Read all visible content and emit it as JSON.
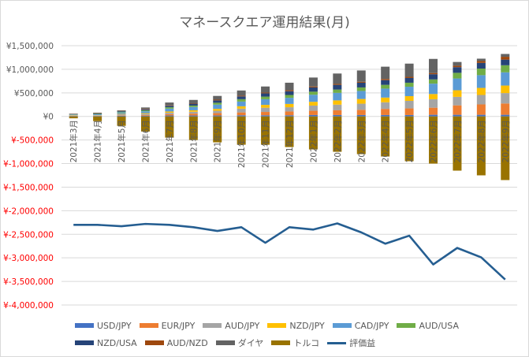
{
  "chart_data": {
    "type": "bar",
    "subtype": "stacked-bar-with-line",
    "title": "マネースクエア運用結果(月)",
    "xlabel": "",
    "ylabel": "",
    "ylim": [
      -4000000,
      1500000
    ],
    "yticks": [
      1500000,
      1000000,
      500000,
      0,
      -500000,
      -1000000,
      -1500000,
      -2000000,
      -2500000,
      -3000000,
      -3500000,
      -4000000
    ],
    "ytick_labels": [
      "¥1,500,000",
      "¥1,000,000",
      "¥500,000",
      "¥0",
      "¥-500,000",
      "¥-1,000,000",
      "¥-1,500,000",
      "¥-2,000,000",
      "¥-2,500,000",
      "¥-3,000,000",
      "¥-3,500,000",
      "¥-4,000,000"
    ],
    "negative_tick_color": "#ff0000",
    "positive_tick_color": "#595959",
    "grid": true,
    "legend_position": "bottom",
    "categories": [
      "2021年3月",
      "2021年4月",
      "2021年5月",
      "2021年6月",
      "2021年7月",
      "2021年8月",
      "2021年9月",
      "2021年10月",
      "2021年11月",
      "2021年12月",
      "2022年1月",
      "2022年2月",
      "2022年3月",
      "2022年4月",
      "2022年5月",
      "2022年6月",
      "2022年7月",
      "2022年8月",
      "2022年9月"
    ],
    "series": [
      {
        "name": "USD/JPY",
        "color": "#4472c4",
        "values": [
          10000,
          10000,
          15000,
          15000,
          20000,
          20000,
          20000,
          25000,
          25000,
          25000,
          30000,
          30000,
          30000,
          30000,
          30000,
          35000,
          35000,
          35000,
          35000
        ]
      },
      {
        "name": "EUR/JPY",
        "color": "#ed7d31",
        "values": [
          5000,
          5000,
          10000,
          15000,
          30000,
          40000,
          50000,
          60000,
          70000,
          80000,
          90000,
          100000,
          110000,
          130000,
          140000,
          150000,
          200000,
          220000,
          240000
        ]
      },
      {
        "name": "AUD/JPY",
        "color": "#a5a5a5",
        "values": [
          10000,
          10000,
          20000,
          25000,
          30000,
          40000,
          50000,
          80000,
          90000,
          90000,
          110000,
          120000,
          130000,
          140000,
          160000,
          180000,
          180000,
          200000,
          220000
        ]
      },
      {
        "name": "NZD/JPY",
        "color": "#ffc000",
        "values": [
          5000,
          5000,
          10000,
          15000,
          25000,
          30000,
          40000,
          50000,
          60000,
          70000,
          80000,
          90000,
          100000,
          100000,
          100000,
          110000,
          140000,
          150000,
          160000
        ]
      },
      {
        "name": "CAD/JPY",
        "color": "#5b9bd5",
        "values": [
          10000,
          15000,
          30000,
          40000,
          60000,
          70000,
          90000,
          100000,
          120000,
          130000,
          150000,
          160000,
          170000,
          190000,
          200000,
          220000,
          250000,
          270000,
          280000
        ]
      },
      {
        "name": "AUD/USA",
        "color": "#70ad47",
        "values": [
          5000,
          10000,
          15000,
          20000,
          30000,
          30000,
          40000,
          50000,
          55000,
          60000,
          65000,
          70000,
          75000,
          80000,
          85000,
          90000,
          120000,
          140000,
          150000
        ]
      },
      {
        "name": "NZD/USA",
        "color": "#264478",
        "values": [
          5000,
          10000,
          15000,
          20000,
          30000,
          40000,
          50000,
          60000,
          70000,
          80000,
          90000,
          100000,
          100000,
          100000,
          100000,
          110000,
          120000,
          120000,
          120000
        ]
      },
      {
        "name": "AUD/NZD",
        "color": "#9e480e",
        "values": [
          5000,
          5000,
          5000,
          10000,
          10000,
          10000,
          15000,
          15000,
          15000,
          20000,
          20000,
          20000,
          20000,
          25000,
          25000,
          25000,
          30000,
          40000,
          60000
        ]
      },
      {
        "name": "ダイヤ",
        "color": "#636363",
        "values": [
          5000,
          10000,
          10000,
          30000,
          60000,
          70000,
          80000,
          110000,
          130000,
          160000,
          190000,
          220000,
          240000,
          260000,
          280000,
          300000,
          80000,
          50000,
          60000
        ]
      },
      {
        "name": "トルコ",
        "color": "#997300",
        "values": [
          -40000,
          -100000,
          -200000,
          -320000,
          -450000,
          -500000,
          -550000,
          -600000,
          -600000,
          -650000,
          -700000,
          -750000,
          -800000,
          -850000,
          -950000,
          -1000000,
          -1150000,
          -1250000,
          -1350000
        ]
      }
    ],
    "line_series": {
      "name": "評価益",
      "color": "#255e91",
      "values": [
        -2300000,
        -2300000,
        -2330000,
        -2280000,
        -2300000,
        -2350000,
        -2430000,
        -2350000,
        -2680000,
        -2350000,
        -2400000,
        -2270000,
        -2460000,
        -2700000,
        -2530000,
        -3140000,
        -2790000,
        -2990000,
        -3460000
      ]
    }
  }
}
